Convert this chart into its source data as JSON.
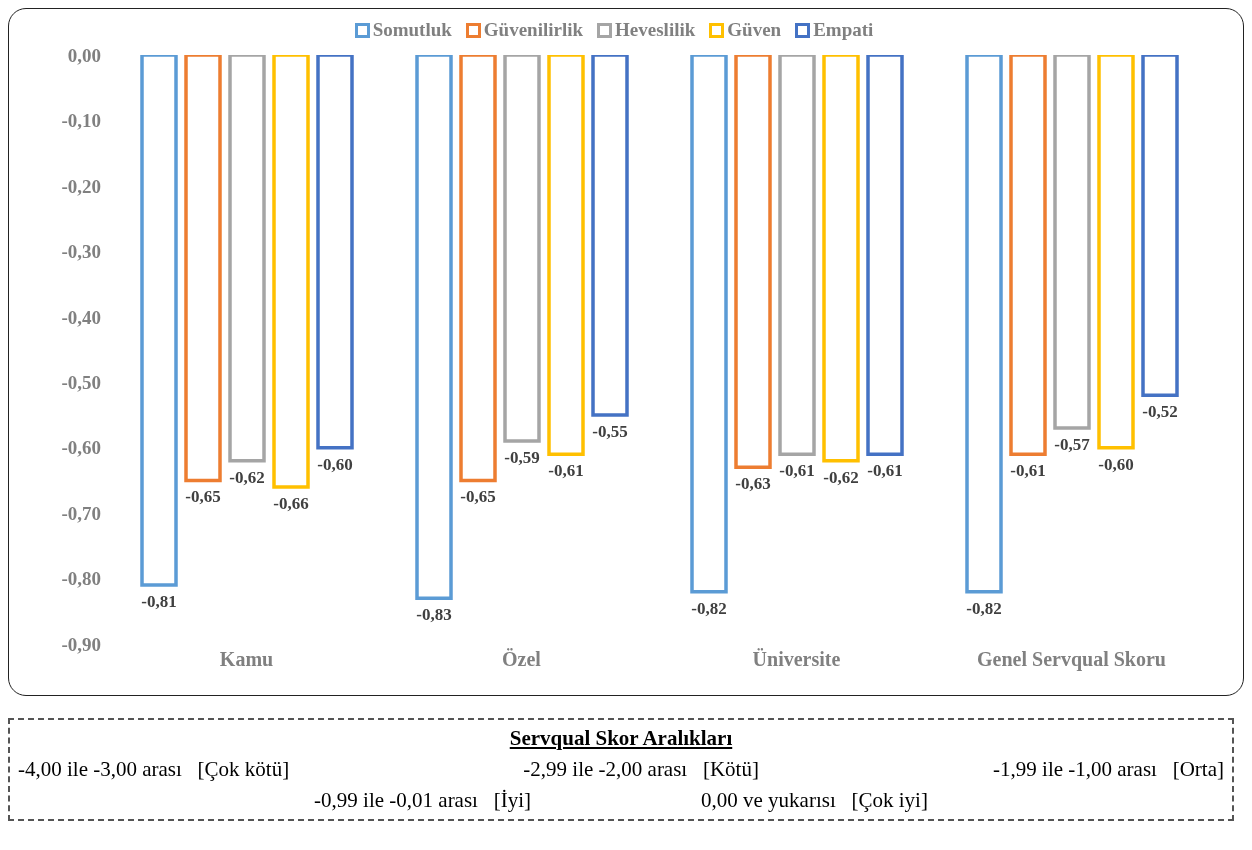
{
  "chart_data": {
    "type": "bar",
    "categories": [
      "Kamu",
      "Özel",
      "Üniversite",
      "Genel Servqual Skoru"
    ],
    "series": [
      {
        "name": "Somutluk",
        "color": "#5b9bd5",
        "values": [
          -0.81,
          -0.83,
          -0.82,
          -0.82
        ],
        "value_labels": [
          "-0,81",
          "-0,83",
          "-0,82",
          "-0,82"
        ]
      },
      {
        "name": "Güvenilirlik",
        "color": "#ed7d31",
        "values": [
          -0.65,
          -0.65,
          -0.63,
          -0.61
        ],
        "value_labels": [
          "-0,65",
          "-0,65",
          "-0,63",
          "-0,61"
        ]
      },
      {
        "name": "Heveslilik",
        "color": "#a5a5a5",
        "values": [
          -0.62,
          -0.59,
          -0.61,
          -0.57
        ],
        "value_labels": [
          "-0,62",
          "-0,59",
          "-0,61",
          "-0,57"
        ]
      },
      {
        "name": "Güven",
        "color": "#ffc000",
        "values": [
          -0.66,
          -0.61,
          -0.62,
          -0.6
        ],
        "value_labels": [
          "-0,66",
          "-0,61",
          "-0,62",
          "-0,60"
        ]
      },
      {
        "name": "Empati",
        "color": "#4472c4",
        "values": [
          -0.6,
          -0.55,
          -0.61,
          -0.52
        ],
        "value_labels": [
          "-0,60",
          "-0,55",
          "-0,61",
          "-0,52"
        ]
      }
    ],
    "ylim": [
      -0.9,
      0
    ],
    "yticks": [
      {
        "value": 0,
        "label": "0,00"
      },
      {
        "value": -0.1,
        "label": "-0,10"
      },
      {
        "value": -0.2,
        "label": "-0,20"
      },
      {
        "value": -0.3,
        "label": "-0,30"
      },
      {
        "value": -0.4,
        "label": "-0,40"
      },
      {
        "value": -0.5,
        "label": "-0,50"
      },
      {
        "value": -0.6,
        "label": "-0,60"
      },
      {
        "value": -0.7,
        "label": "-0,70"
      },
      {
        "value": -0.8,
        "label": "-0,80"
      },
      {
        "value": -0.9,
        "label": "-0,90"
      }
    ],
    "grid": false,
    "legend": "top",
    "annotations": [
      "Servqual Skor Aralıkları",
      "-4,00 ile -3,00 arası   [Çok kötü]",
      "-2,99 ile -2,00 arası   [Kötü]",
      "-1,99 ile -1,00 arası   [Orta]",
      "-0,99 ile -0,01 arası   [İyi]",
      "0,00 ve yukarısı   [Çok iyi]"
    ]
  }
}
